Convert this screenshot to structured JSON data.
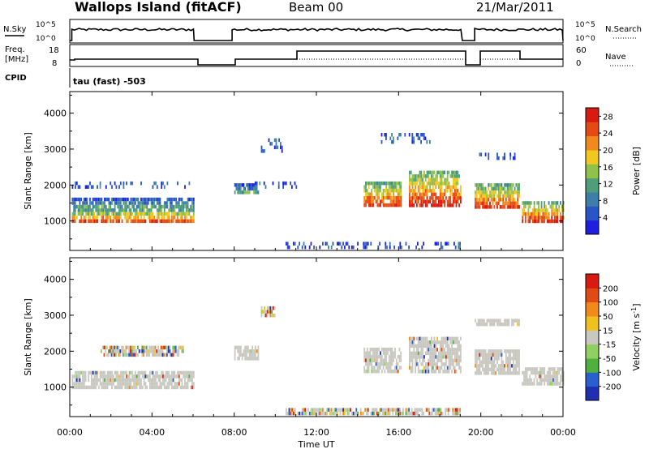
{
  "header": {
    "station": "Wallops Island (fitACF)",
    "beam": "Beam 00",
    "date": "21/Mar/2011"
  },
  "strip_labels": {
    "nsky": "N.Sky",
    "nsky_top": "10^5",
    "nsky_bottom": "10^0",
    "nsearch": "N.Search",
    "nsearch_top": "10^5",
    "nsearch_bottom": "10^0",
    "freq_line1": "Freq.",
    "freq_line2": "[MHz]",
    "freq_top": "18",
    "freq_bottom": "8",
    "nave": "Nave",
    "nave_top": "60",
    "nave_bottom": "0",
    "cpid": "CPID",
    "cpid_value": "tau (fast) -503"
  },
  "xaxis": {
    "label": "Time UT",
    "ticks": [
      "00:00",
      "04:00",
      "08:00",
      "12:00",
      "16:00",
      "20:00",
      "00:00"
    ]
  },
  "chart_data": [
    {
      "type": "heatmap",
      "title": "",
      "xlabel": "Time UT",
      "ylabel": "Slant Range [km]",
      "xlim": [
        0,
        24
      ],
      "ylim": [
        180,
        4600
      ],
      "yticks": [
        1000,
        2000,
        3000,
        4000
      ],
      "colorbar": {
        "label": "Power [dB]",
        "ticks": [
          4,
          8,
          12,
          16,
          20,
          24,
          28
        ],
        "range": [
          0,
          30
        ],
        "colors": [
          "#1f1fe0",
          "#2a55c8",
          "#3d7fa8",
          "#4f9e7a",
          "#8fc24a",
          "#f0c820",
          "#f08a1c",
          "#e34a14",
          "#d81a10"
        ]
      },
      "data_gaps_hours": [
        [
          6.05,
          7.9
        ],
        [
          19.1,
          19.7
        ],
        [
          21.9,
          21.95
        ]
      ],
      "echo_regions": [
        {
          "t0": 0.1,
          "t1": 6.0,
          "r0": 950,
          "r1": 1350,
          "intensity": "high"
        },
        {
          "t0": 0.1,
          "t1": 6.0,
          "r0": 1350,
          "r1": 1650,
          "intensity": "medium"
        },
        {
          "t0": 0.1,
          "t1": 5.8,
          "r0": 1900,
          "r1": 2100,
          "intensity": "low"
        },
        {
          "t0": 8.0,
          "t1": 9.2,
          "r0": 1750,
          "r1": 2050,
          "intensity": "medium"
        },
        {
          "t0": 9.0,
          "t1": 11.0,
          "r0": 1900,
          "r1": 2100,
          "intensity": "low"
        },
        {
          "t0": 9.3,
          "t1": 10.3,
          "r0": 2950,
          "r1": 3300,
          "intensity": "low"
        },
        {
          "t0": 14.3,
          "t1": 16.1,
          "r0": 1400,
          "r1": 2100,
          "intensity": "high"
        },
        {
          "t0": 16.5,
          "t1": 19.0,
          "r0": 1450,
          "r1": 2400,
          "intensity": "high"
        },
        {
          "t0": 15.0,
          "t1": 17.5,
          "r0": 3200,
          "r1": 3450,
          "intensity": "low"
        },
        {
          "t0": 19.7,
          "t1": 21.9,
          "r0": 1350,
          "r1": 2050,
          "intensity": "high"
        },
        {
          "t0": 19.7,
          "t1": 21.9,
          "r0": 2750,
          "r1": 2900,
          "intensity": "low"
        },
        {
          "t0": 22.0,
          "t1": 24.0,
          "r0": 1000,
          "r1": 1550,
          "intensity": "high"
        },
        {
          "t0": 10.5,
          "t1": 19.0,
          "r0": 220,
          "r1": 420,
          "intensity": "low"
        }
      ]
    },
    {
      "type": "heatmap",
      "title": "",
      "xlabel": "Time UT",
      "ylabel": "Slant Range [km]",
      "xlim": [
        0,
        24
      ],
      "ylim": [
        180,
        4600
      ],
      "yticks": [
        1000,
        2000,
        3000,
        4000
      ],
      "colorbar": {
        "label": "Velocity [m s^-1]",
        "ticks": [
          200,
          100,
          50,
          15,
          -15,
          -50,
          -100,
          -200
        ],
        "colors": [
          "#1f2fb0",
          "#2a5fd0",
          "#4fb040",
          "#8fd060",
          "#c8c8c0",
          "#f0c020",
          "#f08a1c",
          "#e04a14",
          "#d81a10"
        ]
      },
      "ground_scatter_color": "#c8c8c0",
      "echo_regions": [
        {
          "t0": 0.1,
          "t1": 6.0,
          "r0": 950,
          "r1": 1450,
          "kind": "ground"
        },
        {
          "t0": 1.5,
          "t1": 5.5,
          "r0": 1850,
          "r1": 2150,
          "kind": "mixed"
        },
        {
          "t0": 8.0,
          "t1": 9.2,
          "r0": 1750,
          "r1": 2150,
          "kind": "ground"
        },
        {
          "t0": 9.3,
          "t1": 10.0,
          "r0": 3000,
          "r1": 3250,
          "kind": "mixed"
        },
        {
          "t0": 14.3,
          "t1": 16.1,
          "r0": 1400,
          "r1": 2100,
          "kind": "ground"
        },
        {
          "t0": 16.5,
          "t1": 19.0,
          "r0": 1450,
          "r1": 2400,
          "kind": "ground"
        },
        {
          "t0": 19.7,
          "t1": 21.9,
          "r0": 1400,
          "r1": 2050,
          "kind": "ground"
        },
        {
          "t0": 19.7,
          "t1": 21.9,
          "r0": 2750,
          "r1": 2900,
          "kind": "ground"
        },
        {
          "t0": 22.0,
          "t1": 24.0,
          "r0": 1100,
          "r1": 1550,
          "kind": "ground"
        },
        {
          "t0": 10.5,
          "t1": 19.0,
          "r0": 220,
          "r1": 420,
          "kind": "mixed"
        }
      ]
    }
  ]
}
